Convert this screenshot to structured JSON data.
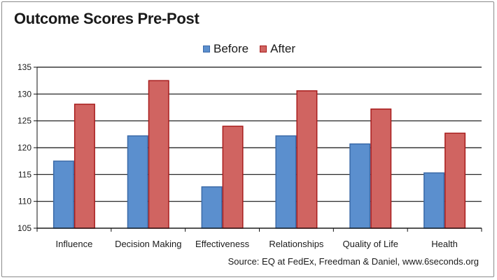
{
  "chart_data": {
    "type": "bar",
    "title": "Outcome Scores Pre-Post",
    "categories": [
      "Influence",
      "Decision Making",
      "Effectiveness",
      "Relationships",
      "Quality of Life",
      "Health"
    ],
    "series": [
      {
        "name": "Before",
        "values": [
          117.5,
          122.2,
          112.7,
          122.2,
          120.7,
          115.3
        ],
        "color": "#5b8fce",
        "stroke": "#3b6aa8"
      },
      {
        "name": "After",
        "values": [
          128.1,
          132.5,
          124.0,
          130.6,
          127.2,
          122.7
        ],
        "color": "#d06461",
        "stroke": "#a81d1d"
      }
    ],
    "y_ticks": [
      "135",
      "130",
      "125",
      "120",
      "115",
      "110",
      "105"
    ],
    "ylim": [
      105,
      135
    ],
    "grid": true,
    "legend_position": "top-center",
    "source": "Source: EQ at FedEx, Freedman & Daniel, www.6seconds.org"
  }
}
